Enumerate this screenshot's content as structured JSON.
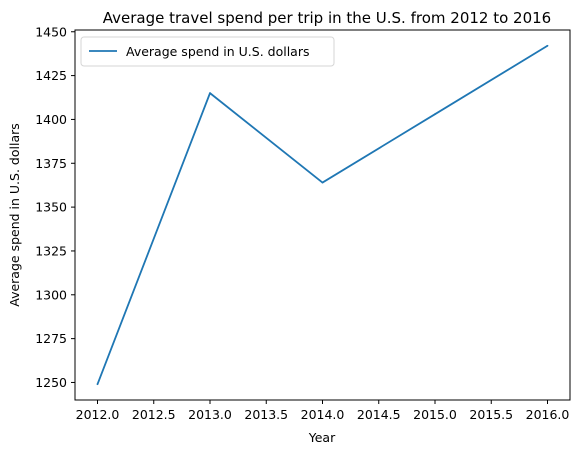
{
  "chart_data": {
    "type": "line",
    "title": "Average travel spend per trip in the U.S. from 2012 to 2016",
    "xlabel": "Year",
    "ylabel": "Average spend in U.S. dollars",
    "x": [
      2012,
      2013,
      2014,
      2015,
      2016
    ],
    "series": [
      {
        "name": "Average spend in U.S. dollars",
        "values": [
          1249,
          1415,
          1364,
          1403,
          1442
        ],
        "color": "#1f77b4"
      }
    ],
    "xlim": [
      2011.8,
      2016.2
    ],
    "ylim": [
      1240,
      1451
    ],
    "xticks": [
      2012.0,
      2012.5,
      2013.0,
      2013.5,
      2014.0,
      2014.5,
      2015.0,
      2015.5,
      2016.0
    ],
    "xtick_labels": [
      "2012.0",
      "2012.5",
      "2013.0",
      "2013.5",
      "2014.0",
      "2014.5",
      "2015.0",
      "2015.5",
      "2016.0"
    ],
    "yticks": [
      1250,
      1275,
      1300,
      1325,
      1350,
      1375,
      1400,
      1425,
      1450
    ],
    "ytick_labels": [
      "1250",
      "1275",
      "1300",
      "1325",
      "1350",
      "1375",
      "1400",
      "1425",
      "1450"
    ],
    "legend_position": "top-left",
    "grid": false
  }
}
